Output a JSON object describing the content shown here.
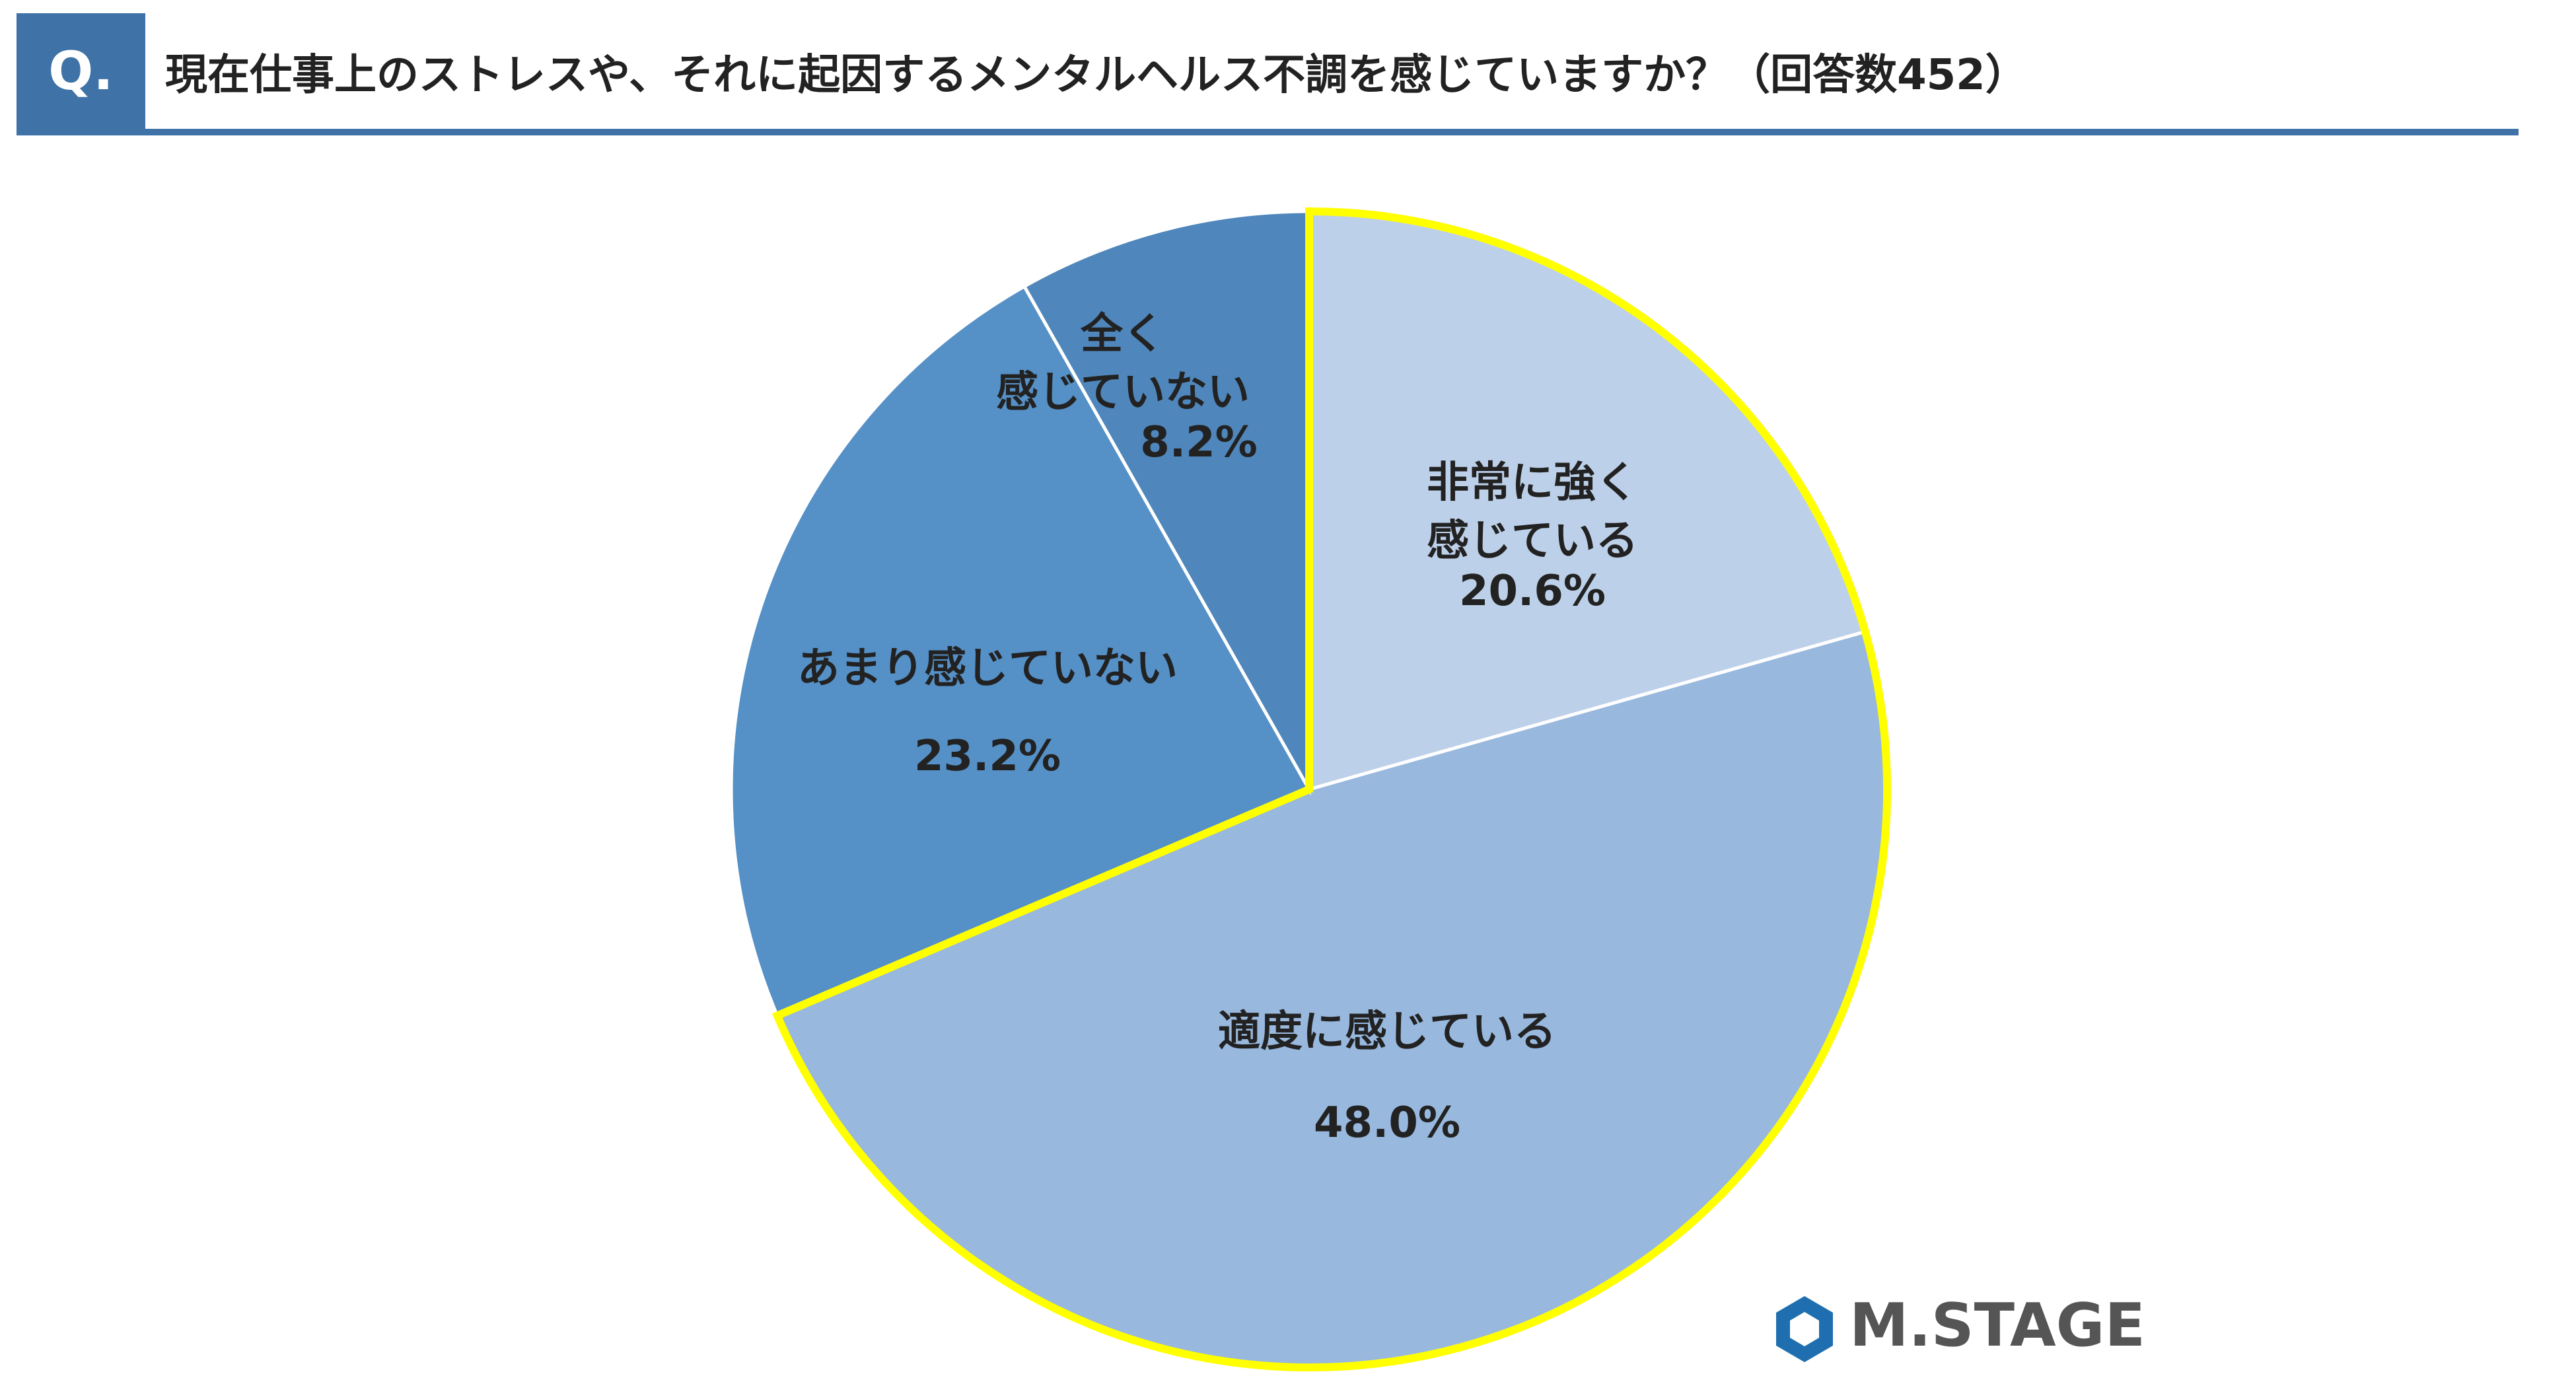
{
  "header": {
    "badge": "Q.",
    "title": "現在仕事上のストレスや、それに起因するメンタルヘルス不調を感じていますか？（回答数452）"
  },
  "chart_data": {
    "type": "pie",
    "categories": [
      "非常に強く\n感じている",
      "適度に感じている",
      "あまり感じていない",
      "全く\n感じていない"
    ],
    "values": [
      20.6,
      48.0,
      23.2,
      8.2
    ],
    "value_labels": [
      "20.6%",
      "48.0%",
      "23.2%",
      "8.2%"
    ],
    "colors": [
      "#bdd0e9",
      "#98b8de",
      "#5590c6",
      "#4f86bb"
    ],
    "highlight": [
      0,
      1
    ],
    "highlight_color": "#ffff00"
  },
  "logo": "M.STAGE"
}
